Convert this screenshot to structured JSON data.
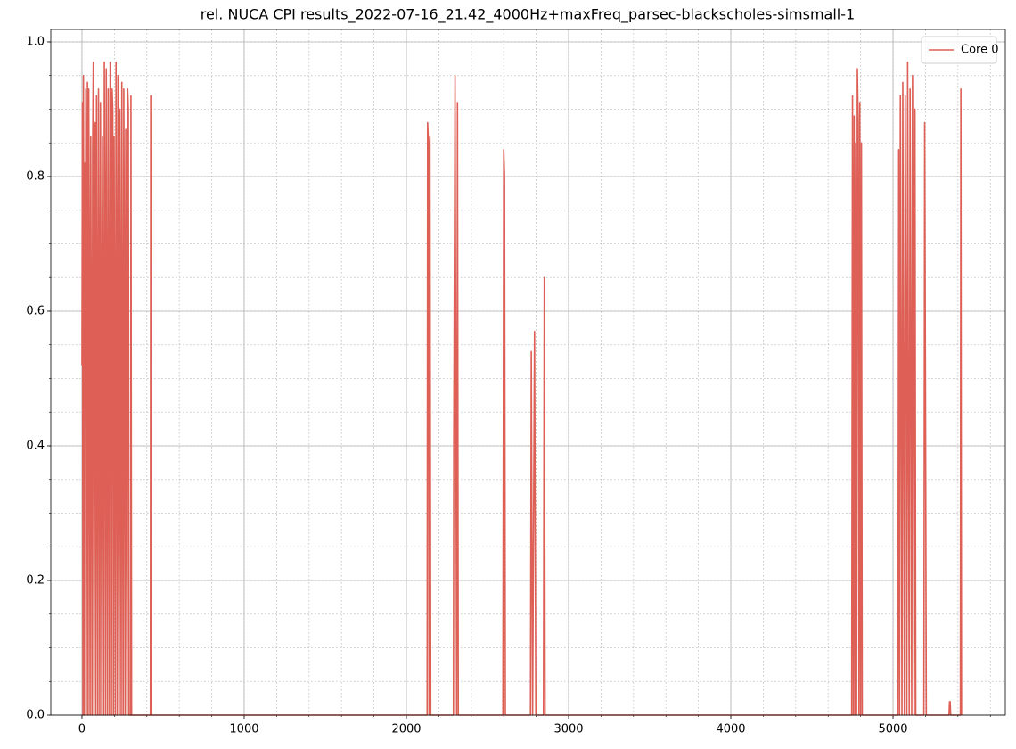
{
  "chart_data": {
    "type": "line",
    "title": "rel. NUCA CPI results_2022-07-16_21.42_4000Hz+maxFreq_parsec-blackscholes-simsmall-1",
    "x": [
      0,
      3,
      6,
      9,
      12,
      15,
      18,
      21,
      24,
      27,
      30,
      34,
      38,
      42,
      46,
      50,
      54,
      58,
      62,
      66,
      70,
      74,
      78,
      82,
      86,
      90,
      94,
      98,
      102,
      106,
      110,
      114,
      118,
      122,
      126,
      130,
      134,
      138,
      142,
      146,
      150,
      154,
      158,
      162,
      166,
      170,
      174,
      178,
      182,
      186,
      190,
      194,
      198,
      202,
      206,
      210,
      214,
      218,
      222,
      226,
      230,
      234,
      238,
      242,
      246,
      250,
      254,
      258,
      262,
      266,
      270,
      274,
      278,
      282,
      286,
      290,
      300,
      302,
      306,
      422,
      424,
      428,
      2128,
      2131,
      2136,
      2140,
      2145,
      2150,
      2290,
      2292,
      2300,
      2305,
      2310,
      2315,
      2320,
      2595,
      2600,
      2605,
      2610,
      2765,
      2770,
      2778,
      2790,
      2798,
      2845,
      2850,
      2855,
      4745,
      4750,
      4755,
      4760,
      4765,
      4770,
      4775,
      4780,
      4785,
      4790,
      4795,
      4800,
      4805,
      4810,
      5030,
      5035,
      5040,
      5045,
      5050,
      5055,
      5060,
      5065,
      5070,
      5075,
      5080,
      5085,
      5090,
      5095,
      5100,
      5105,
      5110,
      5115,
      5120,
      5125,
      5130,
      5135,
      5140,
      5190,
      5195,
      5200,
      5205,
      5345,
      5348,
      5352,
      5355,
      5415,
      5418,
      5422
    ],
    "series": [
      {
        "name": "Core 0",
        "color": "#dd5f55",
        "values": [
          0.52,
          0.91,
          0,
          0.95,
          0.6,
          0,
          0.82,
          0.55,
          0.93,
          0,
          0.7,
          0.94,
          0,
          0.93,
          0.62,
          0,
          0.86,
          0.52,
          0,
          0.84,
          0.97,
          0,
          0.75,
          0.88,
          0,
          0.92,
          0.5,
          0,
          0.93,
          0.6,
          0,
          0.91,
          0.52,
          0,
          0.86,
          0.57,
          0,
          0.97,
          0.7,
          0,
          0.96,
          0.5,
          0,
          0.93,
          0.56,
          0,
          0.97,
          0.75,
          0,
          0.93,
          0.9,
          0,
          0.86,
          0.5,
          0,
          0.97,
          0.6,
          0,
          0.95,
          0.48,
          0,
          0.9,
          0.55,
          0,
          0.94,
          0.47,
          0,
          0.93,
          0.6,
          0,
          0.87,
          0.42,
          0,
          0.93,
          0.9,
          0,
          0,
          0.92,
          0,
          0,
          0.92,
          0,
          0,
          0.88,
          0.85,
          0,
          0.86,
          0,
          0,
          0.4,
          0.95,
          0.48,
          0,
          0.91,
          0,
          0,
          0.84,
          0.8,
          0,
          0,
          0.54,
          0,
          0.57,
          0,
          0,
          0.65,
          0,
          0,
          0.92,
          0,
          0.89,
          0,
          0.85,
          0,
          0.96,
          0.88,
          0,
          0.91,
          0,
          0.85,
          0,
          0,
          0.84,
          0,
          0.92,
          0.5,
          0,
          0.94,
          0.45,
          0,
          0.92,
          0.6,
          0,
          0.97,
          0.42,
          0,
          0.93,
          0.55,
          0,
          0.95,
          0.5,
          0,
          0.9,
          0,
          0,
          0.88,
          0.47,
          0,
          0,
          0.02,
          0.02,
          0,
          0,
          0.93,
          0
        ]
      }
    ],
    "xlim": [
      -192,
      5692
    ],
    "ylim": [
      0,
      1.0185
    ],
    "xticks": [
      0,
      1000,
      2000,
      3000,
      4000,
      5000
    ],
    "yticks": [
      {
        "value": 0,
        "label": "0.0"
      },
      0.2,
      0.4,
      0.6,
      0.8,
      {
        "value": 1,
        "label": "1.0"
      }
    ],
    "xminorticks": [
      0,
      200,
      400,
      600,
      800,
      1000,
      1200,
      1400,
      1600,
      1800,
      2000,
      2200,
      2400,
      2600,
      2800,
      3000,
      3200,
      3400,
      3600,
      3800,
      4000,
      4200,
      4400,
      4600,
      4800,
      5000,
      5200,
      5400,
      5600
    ],
    "yminorticks": [
      0,
      0.05,
      0.1,
      0.15,
      0.2,
      0.25,
      0.3,
      0.35,
      0.4,
      0.45,
      0.5,
      0.55,
      0.6,
      0.65,
      0.7,
      0.75,
      0.8,
      0.85,
      0.9,
      0.95,
      1
    ],
    "grid": true,
    "legend": "upper right"
  }
}
